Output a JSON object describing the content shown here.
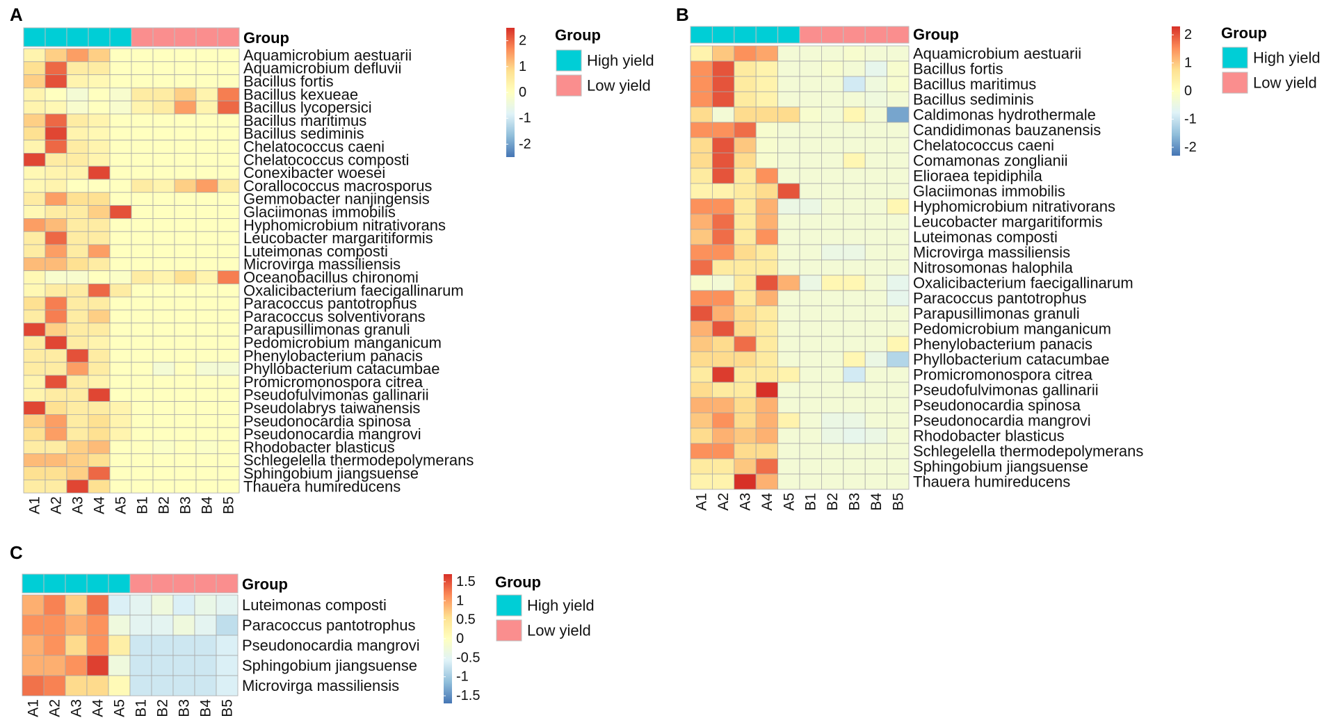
{
  "colors": {
    "high_yield": "#00CED6",
    "low_yield": "#FA8E8E",
    "scale": [
      "#4575B4",
      "#91BFDB",
      "#E0F3F8",
      "#FFFFBF",
      "#FEE090",
      "#FC8D59",
      "#D73027"
    ]
  },
  "chart_data": [
    {
      "panel": "A",
      "type": "heatmap",
      "group_title": "Group",
      "legend_title": "Group",
      "legend_items": [
        "High yield",
        "Low yield"
      ],
      "columns": [
        "A1",
        "A2",
        "A3",
        "A4",
        "A5",
        "B1",
        "B2",
        "B3",
        "B4",
        "B5"
      ],
      "column_groups": [
        "High yield",
        "High yield",
        "High yield",
        "High yield",
        "High yield",
        "Low yield",
        "Low yield",
        "Low yield",
        "Low yield",
        "Low yield"
      ],
      "color_range": [
        -2.5,
        2.5
      ],
      "colorbar_ticks": [
        2,
        1,
        0,
        -1,
        -2
      ],
      "colorbar_labels": [
        "2",
        "1",
        "0",
        "-1",
        "-2"
      ],
      "rows": [
        "Aquamicrobium aestuarii",
        "Aquamicrobium defluvii",
        "Bacillus fortis",
        "Bacillus kexueae",
        "Bacillus lycopersici",
        "Bacillus maritimus",
        "Bacillus sediminis",
        "Chelatococcus caeni",
        "Chelatococcus composti",
        "Conexibacter woesei",
        "Corallococcus macrosporus",
        "Gemmobacter nanjingensis",
        "Glaciimonas immobilis",
        "Hyphomicrobium nitrativorans",
        "Leucobacter margaritiformis",
        "Luteimonas composti",
        "Microvirga massiliensis",
        "Oceanobacillus chironomi",
        "Oxalicibacterium faecigallinarum",
        "Paracoccus pantotrophus",
        "Paracoccus solventivorans",
        "Parapusillimonas granuli",
        "Pedomicrobium manganicum",
        "Phenylobacterium panacis",
        "Phyllobacterium catacumbae",
        "Promicromonospora citrea",
        "Pseudofulvimonas gallinarii",
        "Pseudolabrys taiwanensis",
        "Pseudonocardia spinosa",
        "Pseudonocardia mangrovi",
        "Rhodobacter blasticus",
        "Schlegelella thermodepolymerans",
        "Sphingobium jiangsuense",
        "Thauera humireducens"
      ],
      "values": [
        [
          0.3,
          1.0,
          1.5,
          1.0,
          0.0,
          0.0,
          0.0,
          0.0,
          0.0,
          0.0
        ],
        [
          0.8,
          2.0,
          0.5,
          0.5,
          0.0,
          0.0,
          0.0,
          0.0,
          0.0,
          0.0
        ],
        [
          1.0,
          2.2,
          0.3,
          0.2,
          0.0,
          0.0,
          0.0,
          0.0,
          0.0,
          0.0
        ],
        [
          0.3,
          0.0,
          -0.3,
          0.0,
          -0.2,
          0.5,
          0.5,
          1.0,
          0.3,
          1.8
        ],
        [
          0.3,
          0.2,
          -0.2,
          0.0,
          -0.2,
          0.3,
          0.5,
          1.5,
          0.3,
          2.0
        ],
        [
          1.0,
          2.0,
          0.5,
          0.3,
          0.0,
          0.0,
          0.0,
          0.0,
          0.0,
          0.0
        ],
        [
          0.8,
          2.3,
          0.3,
          0.2,
          0.0,
          0.0,
          0.0,
          0.0,
          0.0,
          0.0
        ],
        [
          0.3,
          2.0,
          0.5,
          0.3,
          0.0,
          0.0,
          0.0,
          0.0,
          0.0,
          0.0
        ],
        [
          2.3,
          0.5,
          0.5,
          0.3,
          0.0,
          0.0,
          0.0,
          0.0,
          0.0,
          0.0
        ],
        [
          0.2,
          0.3,
          0.3,
          2.3,
          0.0,
          0.0,
          0.0,
          0.0,
          0.0,
          0.0
        ],
        [
          0.2,
          0.3,
          0.0,
          0.0,
          0.0,
          0.5,
          0.3,
          1.0,
          1.5,
          0.5
        ],
        [
          0.5,
          1.5,
          0.8,
          0.8,
          0.0,
          0.0,
          0.0,
          0.0,
          0.0,
          0.0
        ],
        [
          0.2,
          0.5,
          0.5,
          1.0,
          2.2,
          0.0,
          0.0,
          0.0,
          0.0,
          0.0
        ],
        [
          1.5,
          1.2,
          0.5,
          0.5,
          0.0,
          0.0,
          0.0,
          0.0,
          0.0,
          0.0
        ],
        [
          0.5,
          2.0,
          0.5,
          0.5,
          0.0,
          0.0,
          0.0,
          0.0,
          0.0,
          0.0
        ],
        [
          0.5,
          1.5,
          0.5,
          1.5,
          0.0,
          0.0,
          0.0,
          0.0,
          0.0,
          0.0
        ],
        [
          1.2,
          1.2,
          0.8,
          0.5,
          0.0,
          0.0,
          0.0,
          0.0,
          0.0,
          0.0
        ],
        [
          0.2,
          -0.2,
          -0.2,
          0.0,
          -0.1,
          0.5,
          0.3,
          0.8,
          0.3,
          1.8
        ],
        [
          0.2,
          0.5,
          0.5,
          2.0,
          0.5,
          0.0,
          0.0,
          0.0,
          0.0,
          0.0
        ],
        [
          0.8,
          1.8,
          0.5,
          0.5,
          0.0,
          0.0,
          0.0,
          0.0,
          0.0,
          0.0
        ],
        [
          0.5,
          1.8,
          0.5,
          1.0,
          0.0,
          0.0,
          0.0,
          0.0,
          0.0,
          0.0
        ],
        [
          2.3,
          1.0,
          0.5,
          0.5,
          0.0,
          0.0,
          0.0,
          0.0,
          0.0,
          0.0
        ],
        [
          0.5,
          2.3,
          0.5,
          0.3,
          0.0,
          0.0,
          0.0,
          0.0,
          0.0,
          0.0
        ],
        [
          0.5,
          0.5,
          2.2,
          0.5,
          0.0,
          0.0,
          0.0,
          0.0,
          0.0,
          0.0
        ],
        [
          0.5,
          0.5,
          1.5,
          0.5,
          0.0,
          0.0,
          -0.3,
          0.0,
          -0.3,
          -0.3
        ],
        [
          0.3,
          2.2,
          0.5,
          0.3,
          0.0,
          0.0,
          0.0,
          0.0,
          0.0,
          0.0
        ],
        [
          0.3,
          0.5,
          0.5,
          2.3,
          0.0,
          0.0,
          0.0,
          0.0,
          0.0,
          0.0
        ],
        [
          2.3,
          0.8,
          0.5,
          0.5,
          0.3,
          0.0,
          0.0,
          0.0,
          0.0,
          0.0
        ],
        [
          1.0,
          1.5,
          0.5,
          0.8,
          0.3,
          0.0,
          0.0,
          0.0,
          0.0,
          0.0
        ],
        [
          0.8,
          1.5,
          0.5,
          0.8,
          0.3,
          0.0,
          0.0,
          0.0,
          0.0,
          0.0
        ],
        [
          0.5,
          0.5,
          1.0,
          1.2,
          0.0,
          0.0,
          -0.1,
          0.0,
          -0.1,
          0.0
        ],
        [
          1.2,
          1.2,
          1.0,
          0.8,
          0.0,
          0.0,
          0.0,
          0.0,
          0.0,
          0.0
        ],
        [
          0.8,
          0.8,
          1.0,
          2.0,
          0.0,
          0.0,
          0.0,
          0.0,
          0.0,
          0.0
        ],
        [
          0.5,
          0.5,
          2.3,
          0.8,
          0.0,
          0.0,
          0.0,
          0.0,
          0.0,
          0.0
        ]
      ]
    },
    {
      "panel": "B",
      "type": "heatmap",
      "group_title": "Group",
      "legend_title": "Group",
      "legend_items": [
        "High yield",
        "Low yield"
      ],
      "columns": [
        "A1",
        "A2",
        "A3",
        "A4",
        "A5",
        "B1",
        "B2",
        "B3",
        "B4",
        "B5"
      ],
      "column_groups": [
        "High yield",
        "High yield",
        "High yield",
        "High yield",
        "High yield",
        "Low yield",
        "Low yield",
        "Low yield",
        "Low yield",
        "Low yield"
      ],
      "color_range": [
        -2.3,
        2.3
      ],
      "colorbar_ticks": [
        2,
        1,
        0,
        -1,
        -2
      ],
      "colorbar_labels": [
        "2",
        "1",
        "0",
        "-1",
        "-2"
      ],
      "rows": [
        "Aquamicrobium aestuarii",
        "Bacillus fortis",
        "Bacillus maritimus",
        "Bacillus sediminis",
        "Caldimonas hydrothermale",
        "Candidimonas bauzanensis",
        "Chelatococcus caeni",
        "Comamonas zonglianii",
        "Elioraea tepidiphila",
        "Glaciimonas immobilis",
        "Hyphomicrobium nitrativorans",
        "Leucobacter margaritiformis",
        "Luteimonas composti",
        "Microvirga massiliensis",
        "Nitrosomonas halophila",
        "Oxalicibacterium faecigallinarum",
        "Paracoccus pantotrophus",
        "Parapusillimonas granuli",
        "Pedomicrobium manganicum",
        "Phenylobacterium panacis",
        "Phyllobacterium catacumbae",
        "Promicromonospora citrea",
        "Pseudofulvimonas gallinarii",
        "Pseudonocardia spinosa",
        "Pseudonocardia mangrovi",
        "Rhodobacter blasticus",
        "Schlegelella thermodepolymerans",
        "Sphingobium jiangsuense",
        "Thauera humireducens"
      ],
      "values": [
        [
          0.3,
          1.0,
          1.5,
          1.3,
          -0.3,
          -0.3,
          -0.3,
          -0.2,
          -0.3,
          -0.3
        ],
        [
          1.5,
          2.0,
          0.5,
          0.3,
          -0.3,
          -0.3,
          -0.2,
          -0.3,
          -0.6,
          -0.2
        ],
        [
          1.5,
          2.0,
          0.5,
          0.3,
          -0.3,
          -0.3,
          -0.3,
          -0.9,
          -0.4,
          -0.2
        ],
        [
          1.5,
          2.0,
          0.5,
          0.3,
          -0.3,
          -0.3,
          -0.3,
          -0.3,
          -0.4,
          -0.3
        ],
        [
          0.8,
          -0.3,
          0.8,
          0.8,
          0.8,
          -0.2,
          -0.3,
          0.2,
          -0.3,
          -1.8
        ],
        [
          1.5,
          1.5,
          1.8,
          -0.2,
          -0.3,
          -0.3,
          -0.3,
          -0.3,
          -0.3,
          -0.3
        ],
        [
          0.8,
          2.0,
          1.0,
          -0.2,
          -0.3,
          -0.3,
          -0.3,
          -0.3,
          -0.3,
          -0.3
        ],
        [
          0.8,
          2.0,
          0.8,
          -0.2,
          -0.3,
          -0.3,
          -0.3,
          0.2,
          -0.3,
          -0.3
        ],
        [
          0.5,
          2.0,
          0.5,
          1.5,
          -0.3,
          -0.3,
          -0.3,
          -0.3,
          -0.3,
          -0.3
        ],
        [
          0.3,
          0.3,
          0.5,
          0.8,
          2.0,
          -0.3,
          -0.3,
          -0.3,
          -0.3,
          -0.3
        ],
        [
          1.5,
          1.5,
          0.5,
          1.2,
          -0.5,
          -0.5,
          -0.3,
          -0.3,
          -0.3,
          0.2
        ],
        [
          1.2,
          1.8,
          0.5,
          1.2,
          -0.3,
          -0.3,
          -0.3,
          -0.3,
          -0.3,
          -0.3
        ],
        [
          1.0,
          1.8,
          0.5,
          1.5,
          -0.3,
          -0.3,
          -0.3,
          -0.3,
          -0.3,
          -0.3
        ],
        [
          1.5,
          1.5,
          0.8,
          0.5,
          -0.3,
          -0.3,
          -0.5,
          -0.5,
          -0.3,
          -0.3
        ],
        [
          1.8,
          0.5,
          0.5,
          0.5,
          -0.3,
          -0.3,
          -0.3,
          -0.3,
          -0.3,
          -0.3
        ],
        [
          -0.2,
          -0.3,
          0.5,
          2.0,
          1.2,
          -0.5,
          0.2,
          0.2,
          -0.3,
          -0.6
        ],
        [
          1.5,
          1.5,
          0.5,
          1.2,
          -0.3,
          -0.3,
          -0.3,
          -0.3,
          -0.3,
          -0.6
        ],
        [
          2.0,
          1.2,
          0.8,
          0.5,
          -0.3,
          -0.3,
          -0.3,
          -0.3,
          -0.3,
          -0.3
        ],
        [
          1.2,
          2.0,
          0.8,
          0.5,
          -0.3,
          -0.3,
          -0.3,
          -0.3,
          -0.3,
          -0.3
        ],
        [
          1.0,
          0.8,
          1.8,
          0.5,
          -0.3,
          -0.3,
          -0.3,
          -0.3,
          -0.3,
          0.2
        ],
        [
          0.8,
          0.8,
          0.8,
          0.5,
          -0.3,
          -0.3,
          -0.3,
          0.2,
          -0.5,
          -1.2
        ],
        [
          0.5,
          2.2,
          0.5,
          0.5,
          0.3,
          -0.3,
          -0.3,
          -0.9,
          -0.3,
          -0.3
        ],
        [
          0.8,
          0.5,
          0.5,
          2.3,
          -0.3,
          -0.3,
          -0.3,
          -0.3,
          -0.3,
          -0.3
        ],
        [
          1.2,
          1.2,
          0.8,
          1.2,
          -0.3,
          -0.3,
          -0.3,
          -0.3,
          -0.3,
          -0.3
        ],
        [
          1.0,
          1.5,
          0.8,
          1.2,
          0.3,
          -0.3,
          -0.5,
          -0.5,
          -0.3,
          -0.3
        ],
        [
          0.8,
          1.2,
          1.0,
          1.2,
          -0.3,
          -0.3,
          -0.5,
          -0.6,
          -0.5,
          -0.3
        ],
        [
          1.5,
          1.5,
          0.8,
          0.8,
          -0.3,
          -0.3,
          -0.3,
          -0.3,
          -0.3,
          -0.3
        ],
        [
          0.5,
          0.5,
          1.0,
          1.8,
          -0.3,
          -0.3,
          -0.3,
          -0.3,
          -0.3,
          -0.3
        ],
        [
          0.3,
          0.3,
          2.3,
          1.2,
          -0.3,
          -0.3,
          -0.3,
          -0.3,
          -0.3,
          -0.3
        ]
      ]
    },
    {
      "panel": "C",
      "type": "heatmap",
      "group_title": "Group",
      "legend_title": "Group",
      "legend_items": [
        "High yield",
        "Low yield"
      ],
      "columns": [
        "A1",
        "A2",
        "A3",
        "A4",
        "A5",
        "B1",
        "B2",
        "B3",
        "B4",
        "B5"
      ],
      "column_groups": [
        "High yield",
        "High yield",
        "High yield",
        "High yield",
        "High yield",
        "Low yield",
        "Low yield",
        "Low yield",
        "Low yield",
        "Low yield"
      ],
      "color_range": [
        -1.7,
        1.7
      ],
      "colorbar_ticks": [
        1.5,
        1,
        0.5,
        0,
        -0.5,
        -1,
        -1.5
      ],
      "colorbar_labels": [
        "1.5",
        "1",
        "0.5",
        "0",
        "-0.5",
        "-1",
        "-1.5"
      ],
      "rows": [
        "Luteimonas composti",
        "Paracoccus pantotrophus",
        "Pseudonocardia mangrovi",
        "Sphingobium jiangsuense",
        "Microvirga massiliensis"
      ],
      "values": [
        [
          0.9,
          1.2,
          0.7,
          1.3,
          -0.6,
          -0.5,
          -0.3,
          -0.6,
          -0.4,
          -0.5
        ],
        [
          1.1,
          1.1,
          0.9,
          1.1,
          -0.3,
          -0.5,
          -0.5,
          -0.3,
          -0.5,
          -0.8
        ],
        [
          0.9,
          1.1,
          0.6,
          1.1,
          0.3,
          -0.7,
          -0.7,
          -0.7,
          -0.7,
          -0.6
        ],
        [
          0.9,
          0.9,
          1.1,
          1.6,
          -0.3,
          -0.7,
          -0.7,
          -0.7,
          -0.7,
          -0.6
        ],
        [
          1.3,
          1.2,
          0.6,
          0.6,
          0.1,
          -0.7,
          -0.7,
          -0.7,
          -0.7,
          -0.6
        ]
      ]
    }
  ],
  "panel_labels": [
    "A",
    "B",
    "C"
  ]
}
